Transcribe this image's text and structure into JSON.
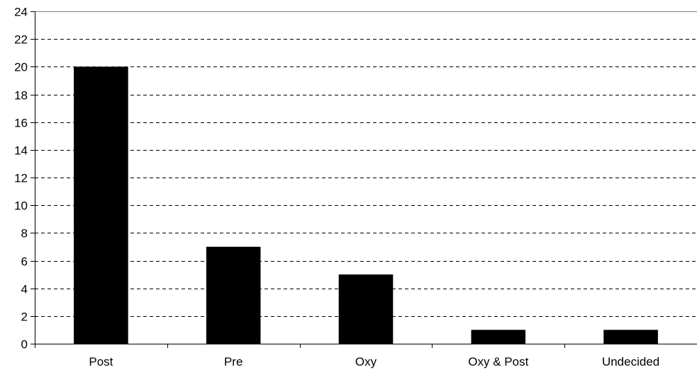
{
  "chart_data": {
    "type": "bar",
    "title": "",
    "xlabel": "",
    "ylabel": "",
    "categories": [
      "Post",
      "Pre",
      "Oxy",
      "Oxy & Post",
      "Undecided"
    ],
    "values": [
      20,
      7,
      5,
      1,
      1
    ],
    "ylim": [
      0,
      24
    ],
    "yticks": [
      0,
      2,
      4,
      6,
      8,
      10,
      12,
      14,
      16,
      18,
      20,
      22,
      24
    ],
    "ytick_labels": [
      "0",
      "2",
      "4",
      "6",
      "8",
      "10",
      "12",
      "14",
      "16",
      "18",
      "20",
      "22",
      "24"
    ],
    "grid": true,
    "grid_style": "dashed",
    "legend": "none",
    "bar_color": "#000000",
    "background_color": "#ffffff"
  }
}
